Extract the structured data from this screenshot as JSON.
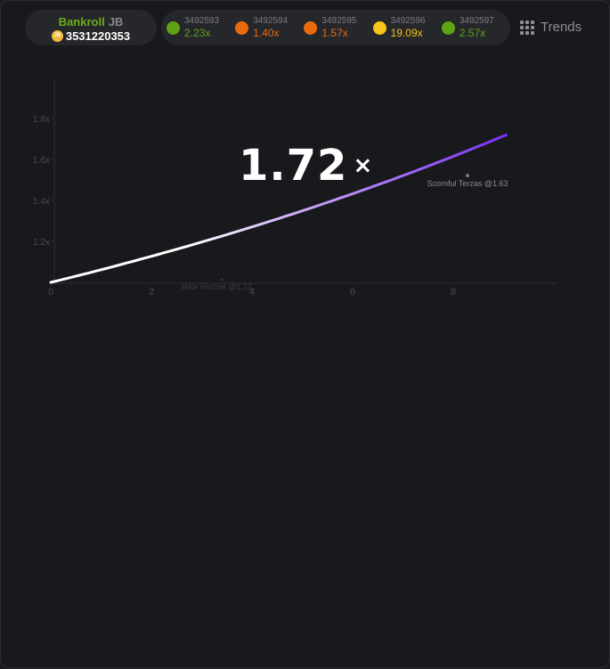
{
  "bankroll": {
    "label": "Bankroll",
    "currency": "JB",
    "coin_icon": "jb-coin-icon",
    "value": "3531220353"
  },
  "history": [
    {
      "id": "3492593",
      "multiplier": "2.23x",
      "color": "#5fa316"
    },
    {
      "id": "3492594",
      "multiplier": "1.40x",
      "color": "#ea6b0c"
    },
    {
      "id": "3492595",
      "multiplier": "1.57x",
      "color": "#ea6b0c"
    },
    {
      "id": "3492596",
      "multiplier": "19.09x",
      "color": "#f5c518"
    },
    {
      "id": "3492597",
      "multiplier": "2.57x",
      "color": "#5fa316"
    }
  ],
  "trends_label": "Trends",
  "current_multiplier": {
    "value": "1.72",
    "suffix": "×"
  },
  "chart_data": {
    "type": "line",
    "x_ticks": [
      "0",
      "2",
      "4",
      "6",
      "8"
    ],
    "y_ticks": [
      "1.2x",
      "1.4x",
      "1.6x",
      "1.8x"
    ],
    "xlim": [
      0,
      10
    ],
    "ylim": [
      1.0,
      2.0
    ],
    "series": [
      {
        "x_end": 9.05,
        "y_end": 1.72,
        "gradient": [
          "#ffffff",
          "#7b2ff7"
        ]
      }
    ],
    "annotations": [
      {
        "text": "Scornful Terzas @1.63",
        "x": 8.3
      },
      {
        "text": "Male Hartzel @1.22",
        "x": 3.5
      }
    ]
  }
}
